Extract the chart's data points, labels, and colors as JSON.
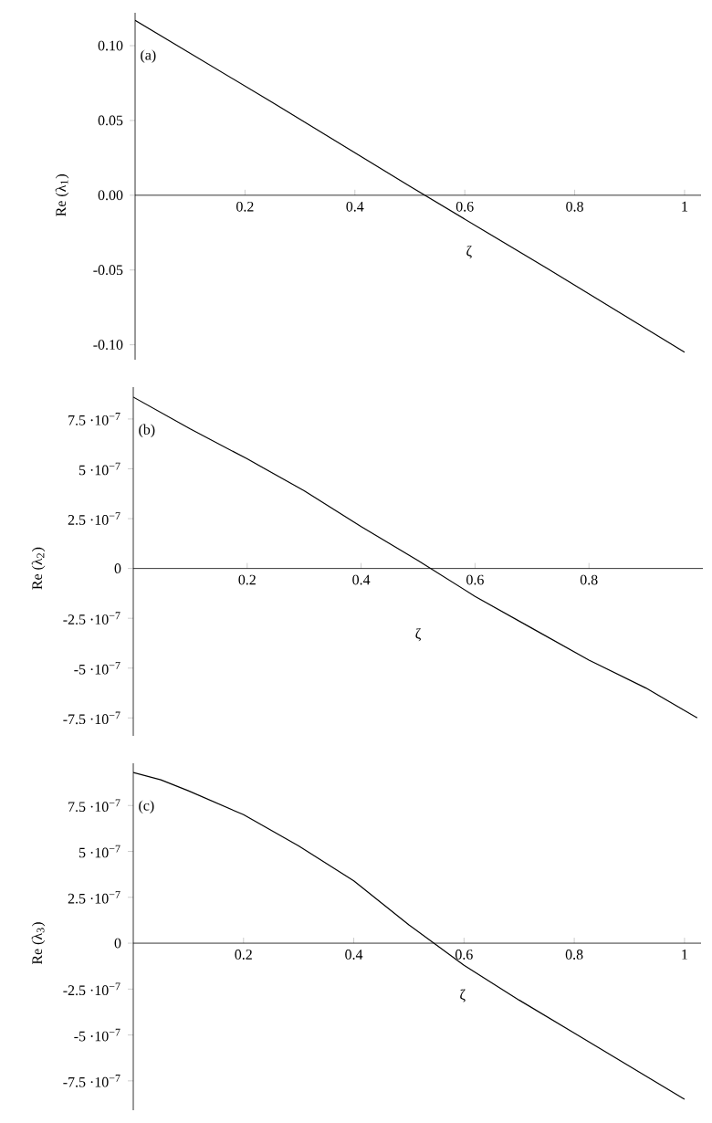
{
  "chart_data": [
    {
      "type": "line",
      "xlabel": "ζ",
      "ylabel": "Re (λ$_{1}$)",
      "annotations": [
        "(a)"
      ],
      "xlim": [
        0,
        1.03
      ],
      "ylim": [
        -0.11,
        0.122
      ],
      "xticks": [
        0.2,
        0.4,
        0.6,
        0.8,
        1
      ],
      "yticks": [
        {
          "value": -0.1,
          "label": "-0.10"
        },
        {
          "value": -0.05,
          "label": "-0.05"
        },
        {
          "value": 0,
          "label": "0.00"
        },
        {
          "value": 0.05,
          "label": "0.05"
        },
        {
          "value": 0.1,
          "label": "0.10"
        }
      ],
      "series": [
        {
          "color": "#000000",
          "x": [
            0,
            0.25,
            0.5,
            0.75,
            1
          ],
          "values": [
            0.117,
            0.062,
            0.006,
            -0.049,
            -0.105
          ]
        }
      ]
    },
    {
      "type": "line",
      "xlabel": "ζ",
      "ylabel": "Re (λ$_{2}$)",
      "annotations": [
        "(b)"
      ],
      "xlim": [
        0,
        1
      ],
      "ylim": [
        -8.4e-07,
        9.1e-07
      ],
      "xticks": [
        0.2,
        0.4,
        0.6,
        0.8
      ],
      "yticks": [
        {
          "value": -7.5e-07,
          "label": "-7.5 ·10$^{−7}$"
        },
        {
          "value": -5e-07,
          "label": "-5 ·10$^{−7}$"
        },
        {
          "value": -2.5e-07,
          "label": "-2.5 ·10$^{−7}$"
        },
        0,
        {
          "value": 2.5e-07,
          "label": "2.5 ·10$^{−7}$"
        },
        {
          "value": 5e-07,
          "label": "5 ·10$^{−7}$"
        },
        {
          "value": 7.5e-07,
          "label": "7.5 ·10$^{−7}$"
        }
      ],
      "series": [
        {
          "color": "#000000",
          "x": [
            0,
            0.1,
            0.2,
            0.3,
            0.4,
            0.5,
            0.6,
            0.7,
            0.8,
            0.9,
            0.99
          ],
          "values": [
            8.6e-07,
            7e-07,
            5.5e-07,
            3.9e-07,
            2.1e-07,
            4e-08,
            -1.4e-07,
            -3e-07,
            -4.6e-07,
            -6e-07,
            -7.5e-07
          ]
        }
      ]
    },
    {
      "type": "line",
      "xlabel": "ζ",
      "ylabel": "Re (λ$_{3}$)",
      "annotations": [
        "(c)"
      ],
      "xlim": [
        0,
        1.03
      ],
      "ylim": [
        -9.1e-07,
        9.8e-07
      ],
      "xticks": [
        0.2,
        0.4,
        0.6,
        0.8,
        1
      ],
      "yticks": [
        {
          "value": -7.5e-07,
          "label": "-7.5 ·10$^{−7}$"
        },
        {
          "value": -5e-07,
          "label": "-5 ·10$^{−7}$"
        },
        {
          "value": -2.5e-07,
          "label": "-2.5 ·10$^{−7}$"
        },
        0,
        {
          "value": 2.5e-07,
          "label": "2.5 ·10$^{−7}$"
        },
        {
          "value": 5e-07,
          "label": "5 ·10$^{−7}$"
        },
        {
          "value": 7.5e-07,
          "label": "7.5 ·10$^{−7}$"
        }
      ],
      "series": [
        {
          "color": "#000000",
          "x": [
            0,
            0.05,
            0.1,
            0.2,
            0.3,
            0.4,
            0.5,
            0.6,
            0.7,
            0.8,
            0.9,
            1
          ],
          "values": [
            9.3e-07,
            8.9e-07,
            8.3e-07,
            7e-07,
            5.3e-07,
            3.4e-07,
            1e-07,
            -1.2e-07,
            -3.1e-07,
            -4.9e-07,
            -6.7e-07,
            -8.5e-07
          ]
        }
      ]
    }
  ]
}
